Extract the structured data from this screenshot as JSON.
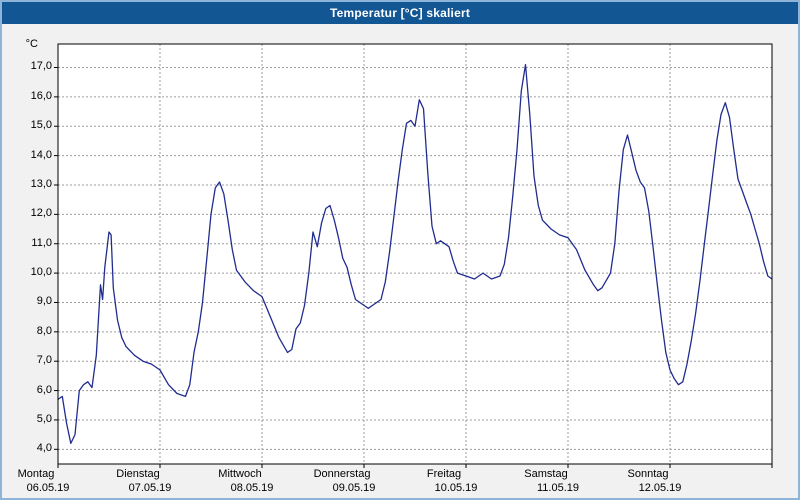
{
  "window": {
    "title": "Temperatur [°C] skaliert"
  },
  "colors": {
    "titlebar_bg": "#125694",
    "titlebar_text": "#ffffff",
    "window_bg": "#f1f1f1",
    "window_border": "#8fb4da",
    "plot_bg": "#ffffff",
    "grid": "#9c9c9c",
    "axis": "#000000",
    "line": "#212c8f"
  },
  "chart_data": {
    "type": "line",
    "title": "Temperatur [°C] skaliert",
    "xlabel": "",
    "ylabel": "°C",
    "x_unit": "hour",
    "xlim": [
      0,
      168
    ],
    "ylim": [
      3.5,
      17.8
    ],
    "grid": true,
    "legend": false,
    "y_ticks": [
      {
        "value": 4,
        "label": "4,0"
      },
      {
        "value": 5,
        "label": "5,0"
      },
      {
        "value": 6,
        "label": "6,0"
      },
      {
        "value": 7,
        "label": "7,0"
      },
      {
        "value": 8,
        "label": "8,0"
      },
      {
        "value": 9,
        "label": "9,0"
      },
      {
        "value": 10,
        "label": "10,0"
      },
      {
        "value": 11,
        "label": "11,0"
      },
      {
        "value": 12,
        "label": "12,0"
      },
      {
        "value": 13,
        "label": "13,0"
      },
      {
        "value": 14,
        "label": "14,0"
      },
      {
        "value": 15,
        "label": "15,0"
      },
      {
        "value": 16,
        "label": "16,0"
      },
      {
        "value": 17,
        "label": "17,0"
      }
    ],
    "x_days": [
      {
        "weekday": "Montag",
        "date": "06.05.19"
      },
      {
        "weekday": "Dienstag",
        "date": "07.05.19"
      },
      {
        "weekday": "Mittwoch",
        "date": "08.05.19"
      },
      {
        "weekday": "Donnerstag",
        "date": "09.05.19"
      },
      {
        "weekday": "Freitag",
        "date": "10.05.19"
      },
      {
        "weekday": "Samstag",
        "date": "11.05.19"
      },
      {
        "weekday": "Sonntag",
        "date": "12.05.19"
      }
    ],
    "series": [
      {
        "name": "Temperatur",
        "color": "#212c8f",
        "x": [
          0,
          1,
          2,
          3,
          4,
          5,
          6,
          7,
          8,
          9,
          10,
          10.5,
          11,
          12,
          12.5,
          13,
          14,
          15,
          16,
          18,
          20,
          22,
          24,
          26,
          28,
          30,
          31,
          32,
          33,
          34,
          35,
          36,
          37,
          38,
          39,
          40,
          41,
          42,
          44,
          46,
          48,
          50,
          52,
          54,
          55,
          56,
          57,
          58,
          59,
          60,
          61,
          62,
          63,
          64,
          65,
          66,
          67,
          68,
          69,
          70,
          72,
          73,
          74,
          76,
          77,
          78,
          79,
          80,
          81,
          82,
          83,
          84,
          85,
          86,
          87,
          88,
          89,
          90,
          92,
          93,
          94,
          96,
          98,
          100,
          102,
          104,
          105,
          106,
          107,
          108,
          109,
          110,
          111,
          112,
          113,
          114,
          116,
          118,
          120,
          122,
          124,
          126,
          127,
          128,
          130,
          131,
          132,
          133,
          134,
          135,
          136,
          137,
          138,
          139,
          140,
          141,
          142,
          143,
          144,
          145,
          146,
          147,
          148,
          149,
          150,
          151,
          152,
          153,
          154,
          155,
          156,
          157,
          158,
          159,
          160,
          161,
          162,
          163,
          164,
          165,
          166,
          167,
          168
        ],
        "y": [
          5.7,
          5.8,
          4.9,
          4.2,
          4.5,
          6.0,
          6.2,
          6.3,
          6.1,
          7.2,
          9.6,
          9.1,
          10.2,
          11.4,
          11.3,
          9.5,
          8.4,
          7.8,
          7.5,
          7.2,
          7.0,
          6.9,
          6.7,
          6.2,
          5.9,
          5.8,
          6.2,
          7.3,
          8.0,
          9.0,
          10.5,
          12.0,
          12.9,
          13.1,
          12.7,
          11.8,
          10.8,
          10.1,
          9.7,
          9.4,
          9.2,
          8.5,
          7.8,
          7.3,
          7.4,
          8.1,
          8.3,
          8.9,
          10.0,
          11.4,
          10.9,
          11.7,
          12.2,
          12.3,
          11.8,
          11.2,
          10.5,
          10.2,
          9.6,
          9.1,
          8.9,
          8.8,
          8.9,
          9.1,
          9.7,
          10.7,
          11.9,
          13.1,
          14.2,
          15.1,
          15.2,
          15.0,
          15.9,
          15.6,
          13.4,
          11.6,
          11.0,
          11.1,
          10.9,
          10.4,
          10.0,
          9.9,
          9.8,
          10.0,
          9.8,
          9.9,
          10.3,
          11.2,
          12.6,
          14.2,
          16.2,
          17.1,
          15.4,
          13.3,
          12.3,
          11.8,
          11.5,
          11.3,
          11.2,
          10.8,
          10.1,
          9.6,
          9.4,
          9.5,
          10.0,
          11.0,
          12.8,
          14.2,
          14.7,
          14.1,
          13.5,
          13.1,
          12.9,
          12.1,
          10.9,
          9.6,
          8.4,
          7.3,
          6.7,
          6.4,
          6.2,
          6.3,
          6.9,
          7.7,
          8.6,
          9.7,
          10.9,
          12.1,
          13.3,
          14.5,
          15.4,
          15.8,
          15.3,
          14.2,
          13.2,
          12.8,
          12.4,
          12.0,
          11.5,
          11.0,
          10.4,
          9.9,
          9.8
        ]
      }
    ]
  }
}
